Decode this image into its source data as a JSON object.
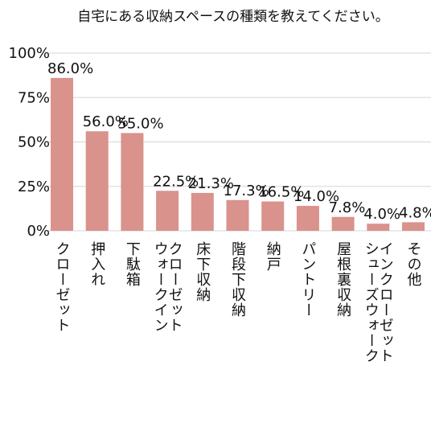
{
  "chart_data": {
    "type": "bar",
    "title": "自宅にある収納スペースの種類を教えてください。",
    "xlabel": "",
    "ylabel": "",
    "ylim": [
      0,
      100
    ],
    "yticks": [
      "0%",
      "25%",
      "50%",
      "75%",
      "100%"
    ],
    "grid": true,
    "legend": "none",
    "bar_color": "#d9928c",
    "categories": [
      "クローゼット",
      "押入れ",
      "下駄箱",
      "ウォークインクローゼット",
      "床下収納",
      "階段下収納",
      "納戸",
      "パントリー",
      "屋根裏収納",
      "シューズウォークインクローゼット",
      "その他"
    ],
    "category_lines": [
      [
        "クローゼット"
      ],
      [
        "押入れ"
      ],
      [
        "下駄箱"
      ],
      [
        "ウォークイン",
        "クローゼット"
      ],
      [
        "床下収納"
      ],
      [
        "階段下収納"
      ],
      [
        "納戸"
      ],
      [
        "パントリー"
      ],
      [
        "屋根裏収納"
      ],
      [
        "シューズウォーク",
        "インクローゼット"
      ],
      [
        "その他"
      ]
    ],
    "values": [
      86.0,
      56.0,
      55.0,
      22.5,
      21.3,
      17.3,
      16.5,
      14.0,
      7.8,
      4.0,
      4.8
    ],
    "value_labels": [
      "86.0%",
      "56.0%",
      "55.0%",
      "22.5%",
      "21.3%",
      "17.3%",
      "16.5%",
      "14.0%",
      "7.8%",
      "4.0%",
      "4.8%"
    ]
  }
}
